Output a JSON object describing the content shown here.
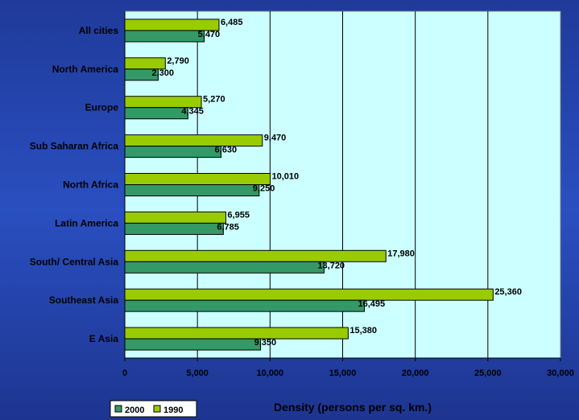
{
  "chart_data": {
    "type": "bar",
    "orientation": "horizontal",
    "categories": [
      "All cities",
      "North America",
      "Europe",
      "Sub Saharan Africa",
      "North Africa",
      "Latin America",
      "South/ Central Asia",
      "Southeast Asia",
      "E Asia"
    ],
    "series": [
      {
        "name": "1990",
        "color": "#99cc00",
        "values": [
          6485,
          2790,
          5270,
          9470,
          10010,
          6955,
          17980,
          25360,
          15380
        ],
        "labels": [
          "6,485",
          "2,790",
          "5,270",
          "9,470",
          "10,010",
          "6,955",
          "17,980",
          "25,360",
          "15,380"
        ]
      },
      {
        "name": "2000",
        "color": "#339966",
        "values": [
          5470,
          2300,
          4345,
          6630,
          9250,
          6785,
          13720,
          16495,
          9350
        ],
        "labels": [
          "5,470",
          "2,300",
          "4,345",
          "6,630",
          "9,250",
          "6,785",
          "13,720",
          "16,495",
          "9,350"
        ]
      }
    ],
    "xlabel": "Density (persons per sq. km.)",
    "xlim": [
      0,
      30000
    ],
    "xticks": [
      0,
      5000,
      10000,
      15000,
      20000,
      25000,
      30000
    ],
    "xtick_labels": [
      "0",
      "5,000",
      "10,000",
      "15,000",
      "20,000",
      "25,000",
      "30,000"
    ],
    "grid": "vertical",
    "plot_background": "#ccffff",
    "page_background": "#2a4fc0",
    "legend": {
      "position": "bottom-left",
      "order": [
        "2000",
        "1990"
      ]
    }
  }
}
